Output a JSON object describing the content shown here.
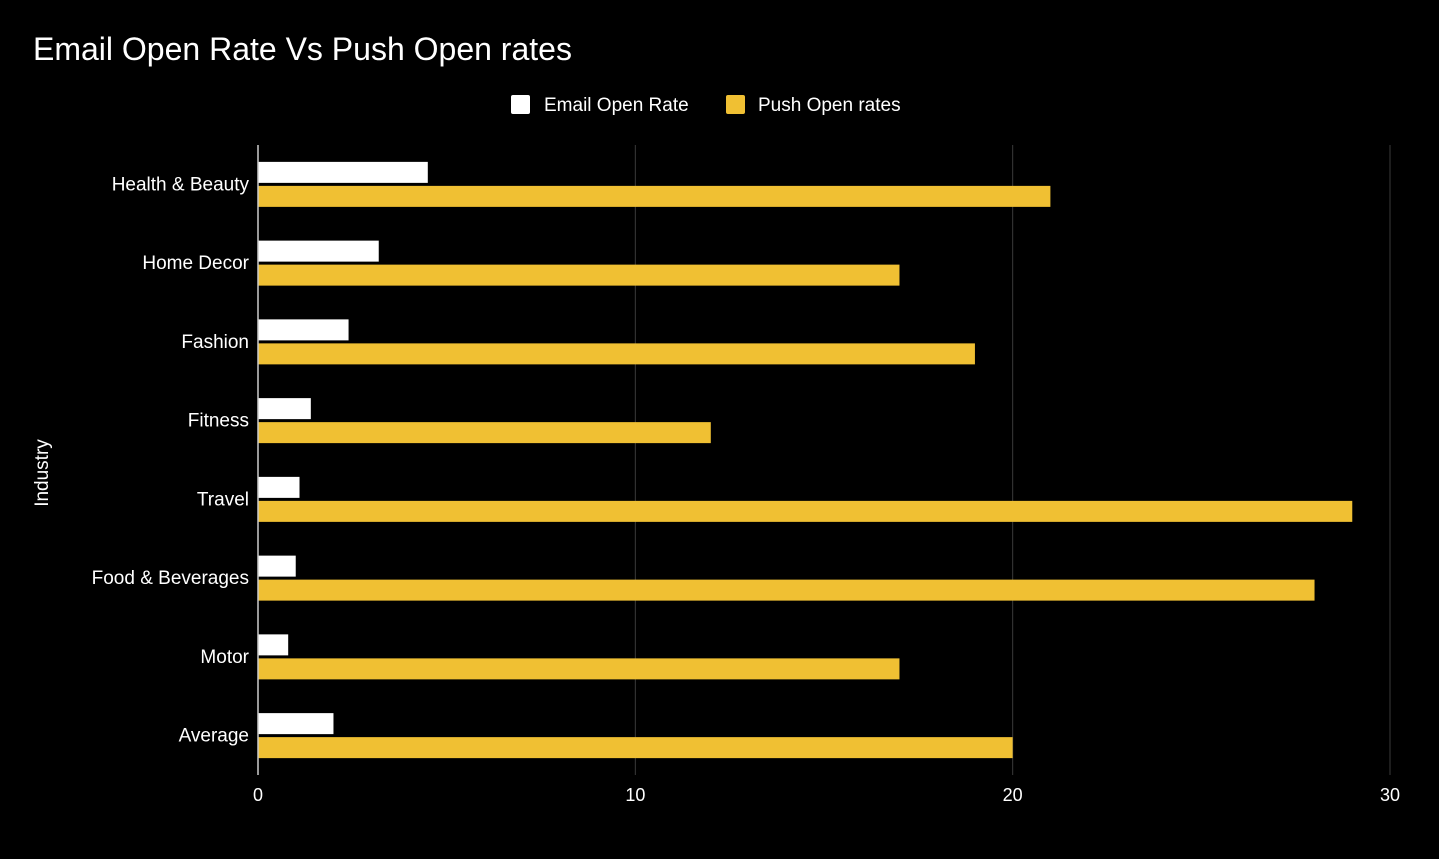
{
  "chart_data": {
    "type": "bar",
    "orientation": "horizontal",
    "title": "Email Open Rate Vs Push Open rates",
    "ylabel": "Industry",
    "xlabel": "",
    "categories": [
      "Health & Beauty",
      "Home Decor",
      "Fashion",
      "Fitness",
      "Travel",
      "Food & Beverages",
      "Motor",
      "Average"
    ],
    "series": [
      {
        "name": "Email Open Rate",
        "color": "#ffffff",
        "values": [
          4.5,
          3.2,
          2.4,
          1.4,
          1.1,
          1.0,
          0.8,
          2.0
        ]
      },
      {
        "name": "Push Open rates",
        "color": "#f0c033",
        "values": [
          21,
          17,
          19,
          12,
          29,
          28,
          17,
          20
        ]
      }
    ],
    "xlim": [
      0,
      30
    ],
    "xticks": [
      0,
      10,
      20,
      30
    ],
    "grid": true,
    "legend_position": "top-center",
    "background": "#000000",
    "gridline_color": "#3a3a3a"
  }
}
